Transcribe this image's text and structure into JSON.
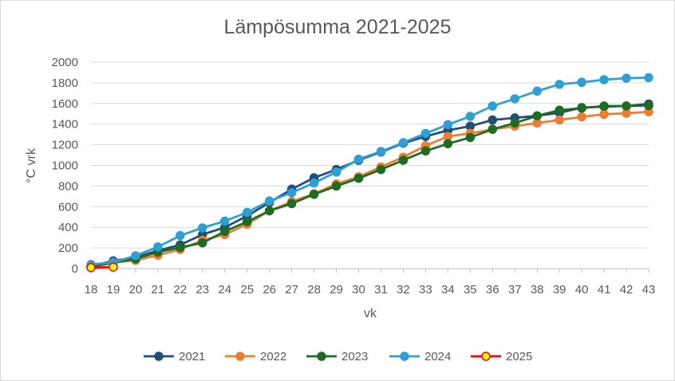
{
  "chart_data": {
    "type": "line",
    "title": "Lämpösumma 2021-2025",
    "xlabel": "vk",
    "ylabel": "°C vrk",
    "xlim": [
      18,
      43
    ],
    "ylim": [
      0,
      2000
    ],
    "x_ticks": [
      18,
      19,
      20,
      21,
      22,
      23,
      24,
      25,
      26,
      27,
      28,
      29,
      30,
      31,
      32,
      33,
      34,
      35,
      36,
      37,
      38,
      39,
      40,
      41,
      42,
      43
    ],
    "y_ticks": [
      0,
      200,
      400,
      600,
      800,
      1000,
      1200,
      1400,
      1600,
      1800,
      2000
    ],
    "grid": true,
    "legend_position": "bottom",
    "series": [
      {
        "name": "2021",
        "color": "#1f4e79",
        "marker_fill": "#1f4e79",
        "x": [
          18,
          19,
          20,
          21,
          22,
          23,
          24,
          25,
          26,
          27,
          28,
          29,
          30,
          31,
          32,
          33,
          34,
          35,
          36,
          37,
          38,
          39,
          40,
          41,
          42,
          43
        ],
        "y": [
          25,
          75,
          110,
          175,
          230,
          330,
          400,
          510,
          640,
          770,
          880,
          960,
          1050,
          1130,
          1215,
          1280,
          1340,
          1380,
          1440,
          1460,
          1480,
          1510,
          1560,
          1570,
          1575,
          1595
        ]
      },
      {
        "name": "2022",
        "color": "#ed7d31",
        "marker_fill": "#ed7d31",
        "x": [
          18,
          19,
          20,
          21,
          22,
          23,
          24,
          25,
          26,
          27,
          28,
          29,
          30,
          31,
          32,
          33,
          34,
          35,
          36,
          37,
          38,
          39,
          40,
          41,
          42,
          43
        ],
        "y": [
          20,
          60,
          80,
          130,
          185,
          275,
          330,
          430,
          560,
          650,
          725,
          820,
          890,
          985,
          1080,
          1190,
          1280,
          1310,
          1350,
          1380,
          1410,
          1440,
          1470,
          1495,
          1505,
          1520
        ]
      },
      {
        "name": "2023",
        "color": "#1e6b24",
        "marker_fill": "#1e6b24",
        "x": [
          18,
          19,
          20,
          21,
          22,
          23,
          24,
          25,
          26,
          27,
          28,
          29,
          30,
          31,
          32,
          33,
          34,
          35,
          36,
          37,
          38,
          39,
          40,
          41,
          42,
          43
        ],
        "y": [
          20,
          55,
          95,
          160,
          205,
          250,
          360,
          455,
          560,
          630,
          720,
          800,
          875,
          960,
          1050,
          1140,
          1210,
          1270,
          1350,
          1410,
          1480,
          1535,
          1555,
          1575,
          1575,
          1580
        ]
      },
      {
        "name": "2024",
        "color": "#2e9fd4",
        "marker_fill": "#2e9fd4",
        "x": [
          18,
          19,
          20,
          21,
          22,
          23,
          24,
          25,
          26,
          27,
          28,
          29,
          30,
          31,
          32,
          33,
          34,
          35,
          36,
          37,
          38,
          39,
          40,
          41,
          42,
          43
        ],
        "y": [
          40,
          60,
          125,
          210,
          320,
          395,
          460,
          545,
          655,
          735,
          830,
          935,
          1060,
          1135,
          1220,
          1310,
          1395,
          1475,
          1575,
          1645,
          1720,
          1785,
          1805,
          1830,
          1845,
          1850
        ]
      },
      {
        "name": "2025",
        "color": "#ff0000",
        "marker_fill": "#ffff00",
        "x": [
          18,
          19
        ],
        "y": [
          10,
          15
        ]
      }
    ]
  }
}
